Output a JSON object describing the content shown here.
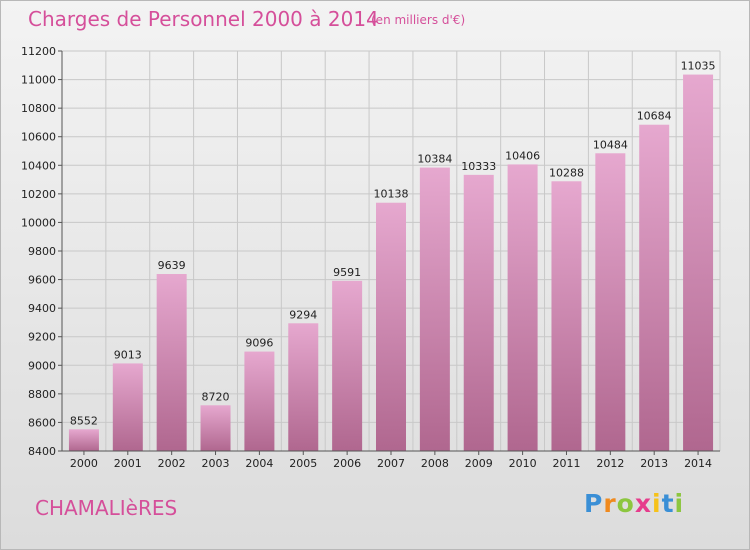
{
  "header": {
    "title": "Charges de Personnel 2000 à 2014",
    "subtitle": "(en milliers d'€)"
  },
  "footer": {
    "city": "CHAMALIèRES",
    "logo_text": "Proxiti"
  },
  "colors": {
    "bar_top": "#e6a8cf",
    "bar_bottom": "#b0678f",
    "accent": "#d54f9a"
  },
  "chart_data": {
    "type": "bar",
    "title": "Charges de Personnel 2000 à 2014",
    "subtitle": "(en milliers d'€)",
    "xlabel": "",
    "ylabel": "",
    "categories": [
      "2000",
      "2001",
      "2002",
      "2003",
      "2004",
      "2005",
      "2006",
      "2007",
      "2008",
      "2009",
      "2010",
      "2011",
      "2012",
      "2013",
      "2014"
    ],
    "values": [
      8552,
      9013,
      9639,
      8720,
      9096,
      9294,
      9591,
      10138,
      10384,
      10333,
      10406,
      10288,
      10484,
      10684,
      11035
    ],
    "ylim": [
      8400,
      11200
    ],
    "yticks": [
      8400,
      8600,
      8800,
      9000,
      9200,
      9400,
      9600,
      9800,
      10000,
      10200,
      10400,
      10600,
      10800,
      11000,
      11200
    ],
    "grid": true,
    "legend": "none",
    "data_labels": true
  }
}
